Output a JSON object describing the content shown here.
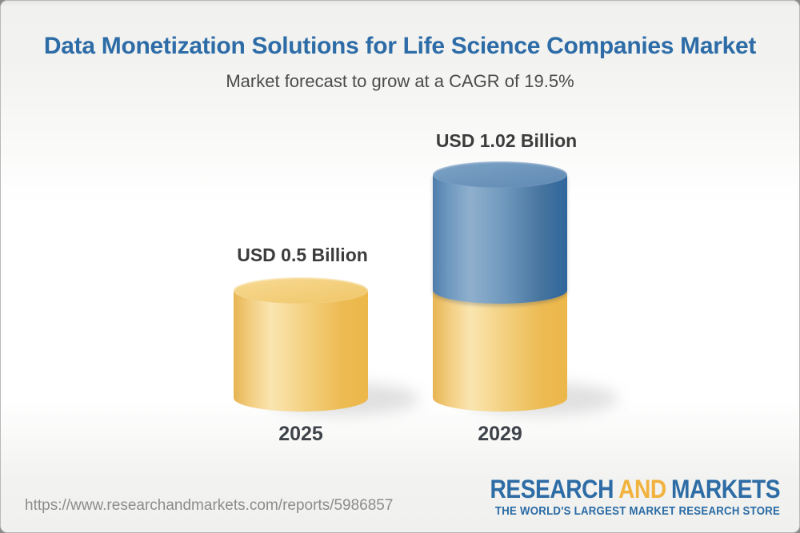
{
  "header": {
    "title": "Data Monetization Solutions for Life Science Companies Market",
    "subtitle": "Market forecast to grow at a CAGR of 19.5%"
  },
  "chart_data": {
    "type": "bar",
    "subtype": "3d-cylinder-stacked",
    "categories": [
      "2025",
      "2029"
    ],
    "values": [
      0.5,
      1.02
    ],
    "value_labels": [
      "USD 0.5 Billion",
      "USD 1.02 Billion"
    ],
    "unit": "USD Billion",
    "cagr_percent": 19.5,
    "legend": "none",
    "grid": false,
    "stacks": [
      {
        "category": "2025",
        "segments": [
          {
            "name": "base-2025",
            "value": 0.5,
            "color": "#F2CB74"
          }
        ]
      },
      {
        "category": "2029",
        "segments": [
          {
            "name": "base-2025",
            "value": 0.5,
            "color": "#F2CB74"
          },
          {
            "name": "growth-to-2029",
            "value": 0.52,
            "color": "#5F8CB8"
          }
        ]
      }
    ],
    "colors": {
      "base_segment": "#F2CB74",
      "growth_segment": "#5F8CB8",
      "title": "#2D6CA7"
    }
  },
  "footer": {
    "url": "https://www.researchandmarkets.com/reports/5986857",
    "logo": {
      "research": "RESEARCH",
      "and": "AND",
      "markets": "MARKETS",
      "tagline": "THE WORLD'S LARGEST MARKET RESEARCH STORE"
    }
  }
}
